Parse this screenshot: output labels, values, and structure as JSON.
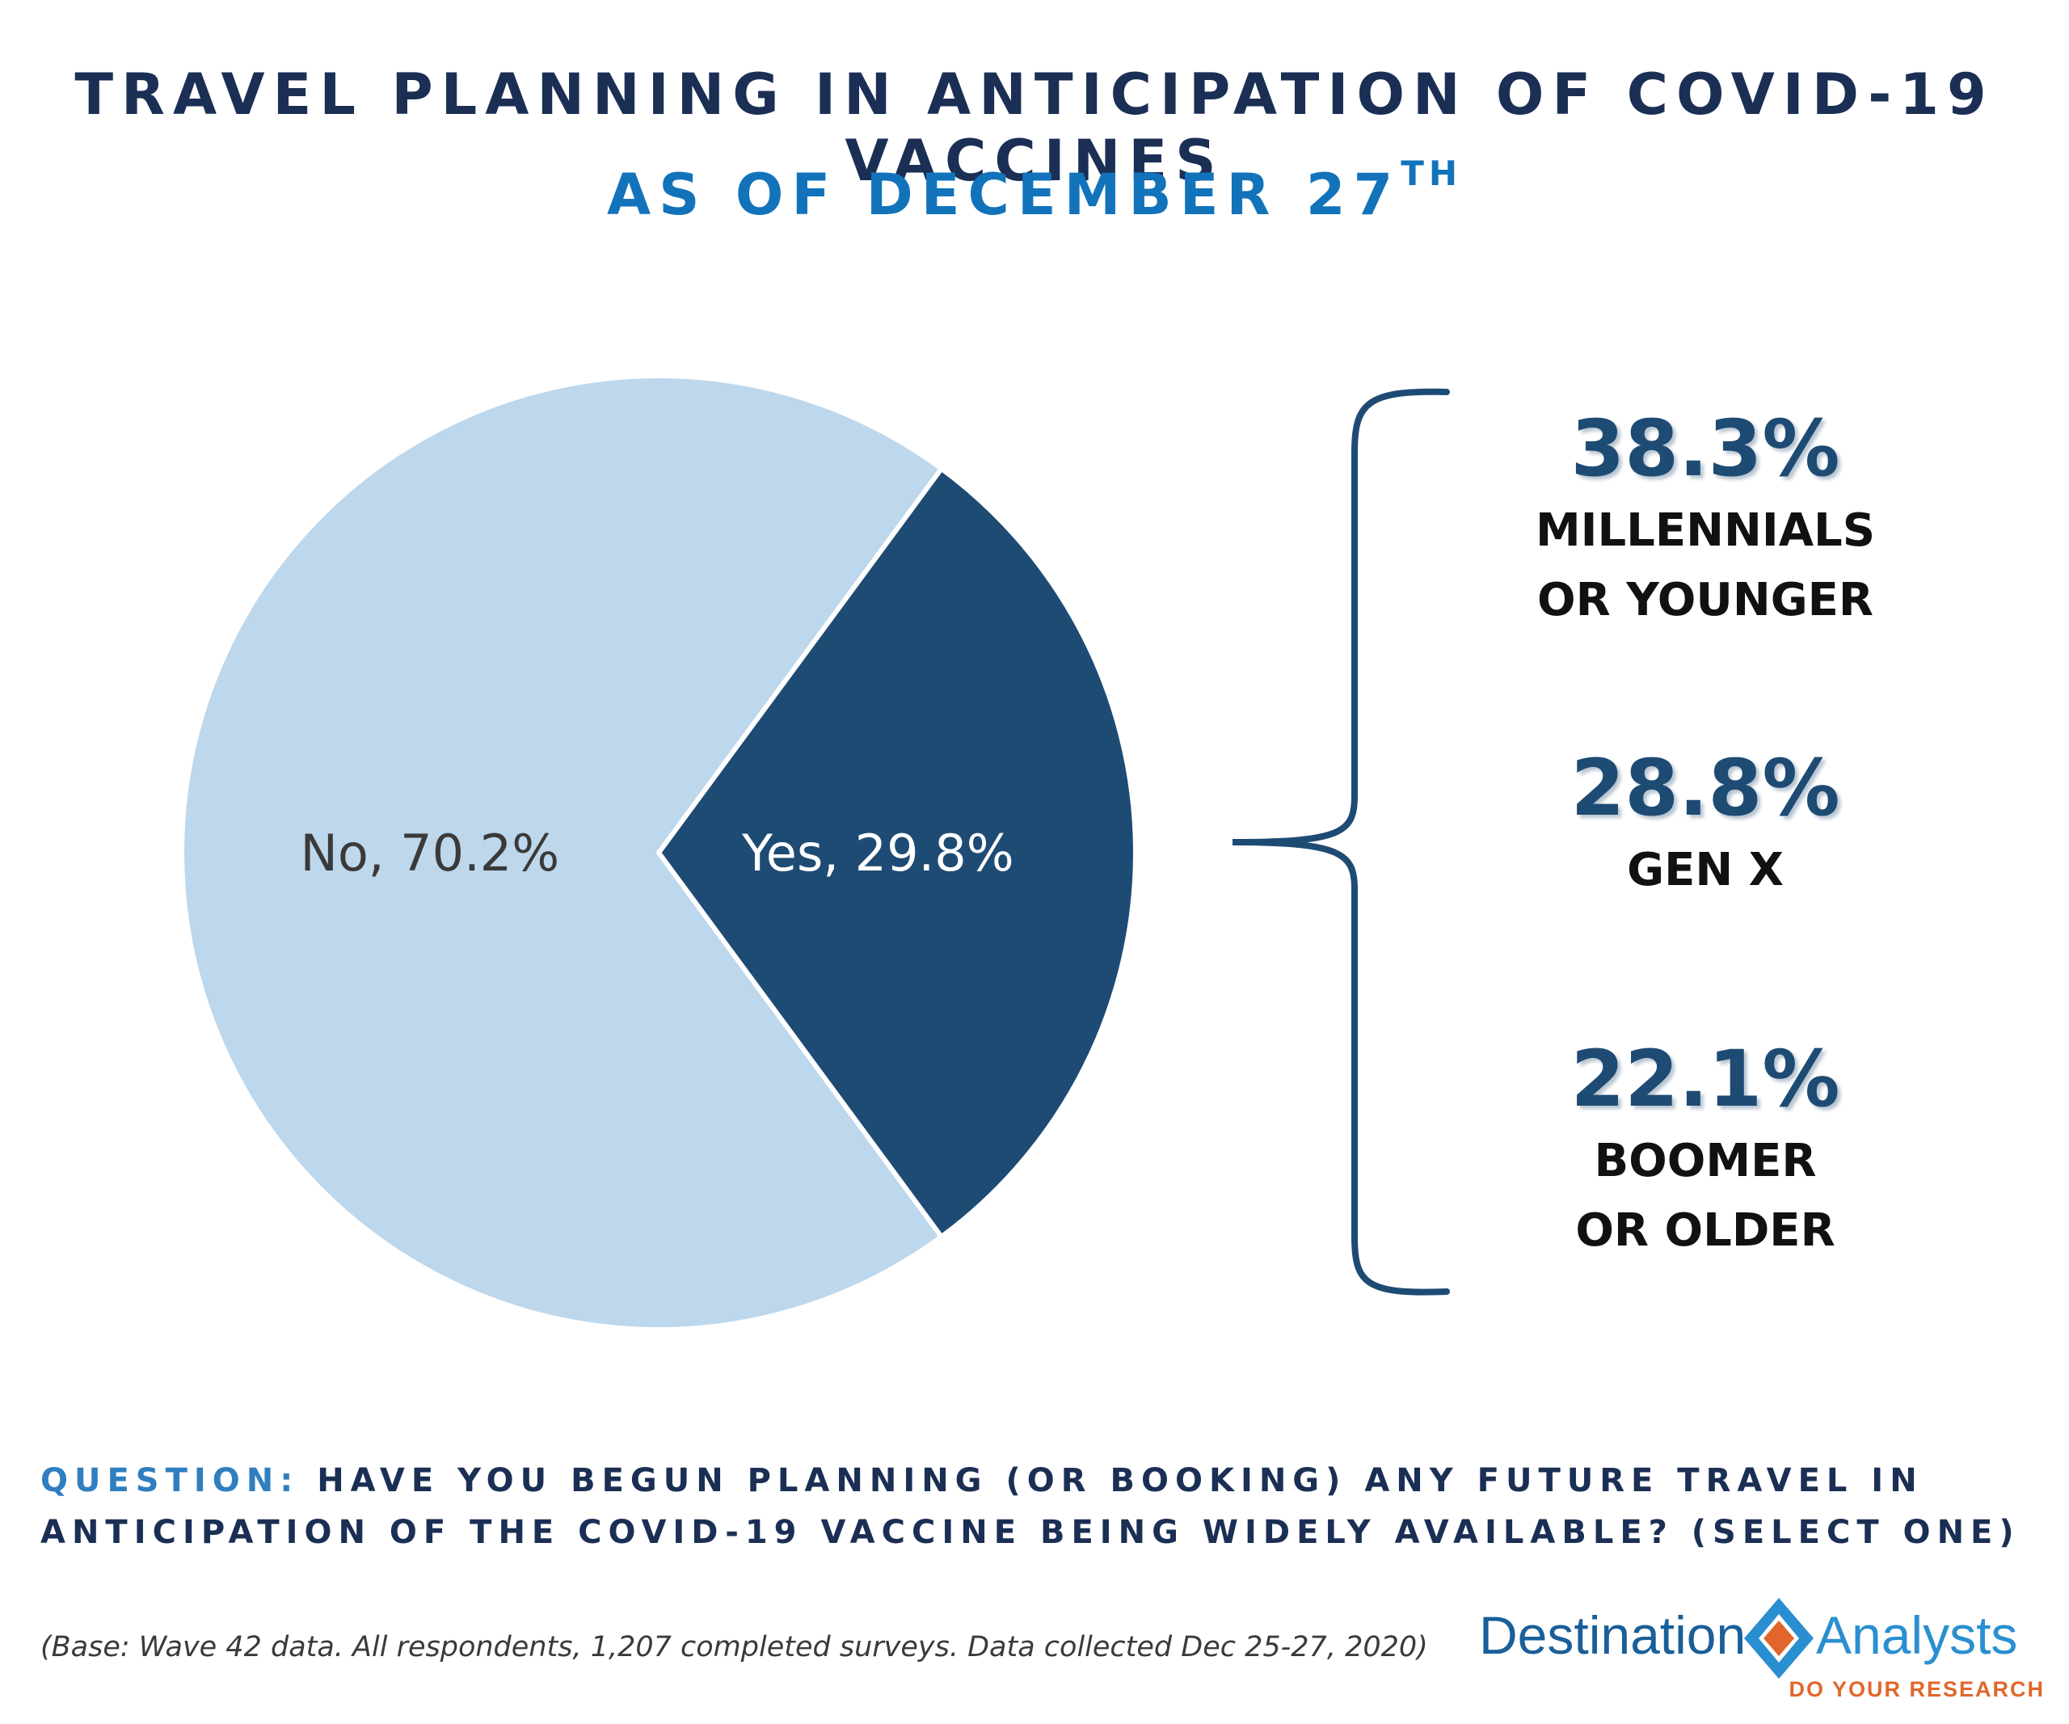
{
  "header": {
    "title": "TRAVEL PLANNING IN ANTICIPATION OF COVID-19 VACCINES",
    "subtitle": "AS OF DECEMBER 27",
    "subtitle_sup": "TH"
  },
  "chart_data": {
    "type": "pie",
    "slices": [
      {
        "label": "No",
        "display": "No, 70.2%",
        "value": 70.2,
        "color": "#bdd7ec"
      },
      {
        "label": "Yes",
        "display": "Yes, 29.8%",
        "value": 29.8,
        "color": "#1e4b74"
      }
    ],
    "breakdown_of": "Yes",
    "breakdown": [
      {
        "value": "38.3%",
        "label": "MILLENNIALS\nOR YOUNGER"
      },
      {
        "value": "28.8%",
        "label": "GEN X"
      },
      {
        "value": "22.1%",
        "label": "BOOMER\nOR OLDER"
      }
    ]
  },
  "question": {
    "label": "QUESTION:",
    "text": "HAVE YOU BEGUN PLANNING (OR BOOKING) ANY FUTURE TRAVEL IN ANTICIPATION OF THE COVID-19 VACCINE BEING WIDELY AVAILABLE? (SELECT ONE)"
  },
  "footnote": "(Base: Wave 42 data. All respondents, 1,207 completed surveys. Data collected Dec 25-27, 2020)",
  "logo": {
    "left_word": "Destination",
    "right_word": "Analysts",
    "tagline": "DO YOUR RESEARCH",
    "colors": {
      "blue": "#1a5f98",
      "orange": "#e2662c"
    }
  }
}
